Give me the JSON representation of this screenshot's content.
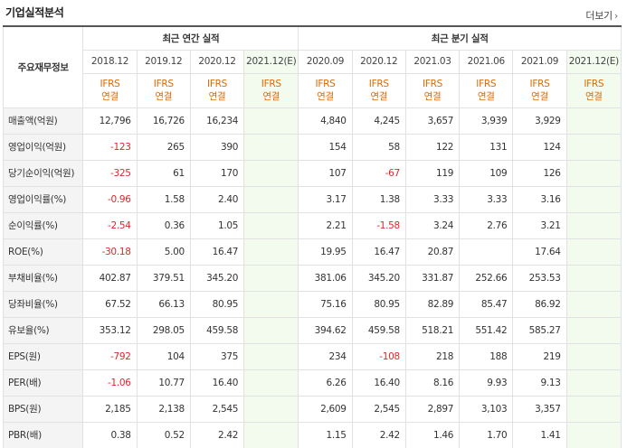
{
  "header": {
    "title": "기업실적분석",
    "more_label": "더보기"
  },
  "table": {
    "row_header_label": "주요재무정보",
    "groups": {
      "annual": "최근 연간 실적",
      "quarterly": "최근 분기 실적"
    },
    "annual_periods": [
      {
        "period": "2018.12",
        "type_line1": "IFRS",
        "type_line2": "연결",
        "estimate": false
      },
      {
        "period": "2019.12",
        "type_line1": "IFRS",
        "type_line2": "연결",
        "estimate": false
      },
      {
        "period": "2020.12",
        "type_line1": "IFRS",
        "type_line2": "연결",
        "estimate": false
      },
      {
        "period": "2021.12(E)",
        "type_line1": "IFRS",
        "type_line2": "연결",
        "estimate": true
      }
    ],
    "quarterly_periods": [
      {
        "period": "2020.09",
        "type_line1": "IFRS",
        "type_line2": "연결",
        "estimate": false
      },
      {
        "period": "2020.12",
        "type_line1": "IFRS",
        "type_line2": "연결",
        "estimate": false
      },
      {
        "period": "2021.03",
        "type_line1": "IFRS",
        "type_line2": "연결",
        "estimate": false
      },
      {
        "period": "2021.06",
        "type_line1": "IFRS",
        "type_line2": "연결",
        "estimate": false
      },
      {
        "period": "2021.09",
        "type_line1": "IFRS",
        "type_line2": "연결",
        "estimate": false
      },
      {
        "period": "2021.12(E)",
        "type_line1": "IFRS",
        "type_line2": "연결",
        "estimate": true
      }
    ],
    "rows": [
      {
        "label": "매출액(억원)",
        "sep": false,
        "annual": [
          "12,796",
          "16,726",
          "16,234",
          ""
        ],
        "quarterly": [
          "4,840",
          "4,245",
          "3,657",
          "3,939",
          "3,929",
          ""
        ]
      },
      {
        "label": "영업이익(억원)",
        "sep": false,
        "annual": [
          "-123",
          "265",
          "390",
          ""
        ],
        "quarterly": [
          "154",
          "58",
          "122",
          "131",
          "124",
          ""
        ]
      },
      {
        "label": "당기순이익(억원)",
        "sep": false,
        "annual": [
          "-325",
          "61",
          "170",
          ""
        ],
        "quarterly": [
          "107",
          "-67",
          "119",
          "109",
          "126",
          ""
        ]
      },
      {
        "label": "영업이익률(%)",
        "sep": true,
        "annual": [
          "-0.96",
          "1.58",
          "2.40",
          ""
        ],
        "quarterly": [
          "3.17",
          "1.38",
          "3.33",
          "3.33",
          "3.16",
          ""
        ]
      },
      {
        "label": "순이익률(%)",
        "sep": false,
        "annual": [
          "-2.54",
          "0.36",
          "1.05",
          ""
        ],
        "quarterly": [
          "2.21",
          "-1.58",
          "3.24",
          "2.76",
          "3.21",
          ""
        ]
      },
      {
        "label": "ROE(%)",
        "sep": false,
        "annual": [
          "-30.18",
          "5.00",
          "16.47",
          ""
        ],
        "quarterly": [
          "19.95",
          "16.47",
          "20.87",
          "",
          "17.64",
          ""
        ]
      },
      {
        "label": "부채비율(%)",
        "sep": true,
        "annual": [
          "402.87",
          "379.51",
          "345.20",
          ""
        ],
        "quarterly": [
          "381.06",
          "345.20",
          "331.87",
          "252.66",
          "253.53",
          ""
        ]
      },
      {
        "label": "당좌비율(%)",
        "sep": false,
        "annual": [
          "67.52",
          "66.13",
          "80.95",
          ""
        ],
        "quarterly": [
          "75.16",
          "80.95",
          "82.89",
          "85.47",
          "86.92",
          ""
        ]
      },
      {
        "label": "유보율(%)",
        "sep": false,
        "annual": [
          "353.12",
          "298.05",
          "459.58",
          ""
        ],
        "quarterly": [
          "394.62",
          "459.58",
          "518.21",
          "551.42",
          "585.27",
          ""
        ]
      },
      {
        "label": "EPS(원)",
        "sep": true,
        "annual": [
          "-792",
          "104",
          "375",
          ""
        ],
        "quarterly": [
          "234",
          "-108",
          "218",
          "188",
          "219",
          ""
        ]
      },
      {
        "label": "PER(배)",
        "sep": false,
        "annual": [
          "-1.06",
          "10.77",
          "16.40",
          ""
        ],
        "quarterly": [
          "6.26",
          "16.40",
          "8.16",
          "9.93",
          "9.13",
          ""
        ]
      },
      {
        "label": "BPS(원)",
        "sep": false,
        "annual": [
          "2,185",
          "2,138",
          "2,545",
          ""
        ],
        "quarterly": [
          "2,609",
          "2,545",
          "2,897",
          "3,103",
          "3,357",
          ""
        ]
      },
      {
        "label": "PBR(배)",
        "sep": false,
        "annual": [
          "0.38",
          "0.52",
          "2.42",
          ""
        ],
        "quarterly": [
          "1.15",
          "2.42",
          "1.46",
          "1.70",
          "1.41",
          ""
        ]
      }
    ]
  },
  "colors": {
    "negative": "#e0262b",
    "ifrs": "#e06a00",
    "estimate_bg": "#f3fbef",
    "estimate_text": "#4a9c2b"
  }
}
